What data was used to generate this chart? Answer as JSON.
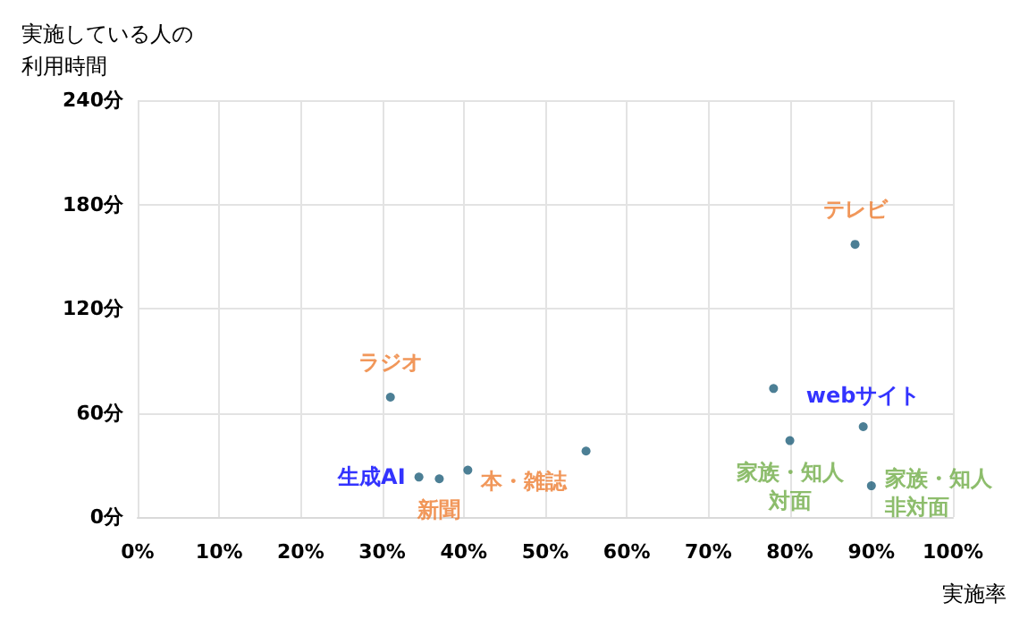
{
  "chart_data": {
    "type": "scatter",
    "xlabel": "実施率",
    "ylabel": "実施している人の利用時間",
    "xlim": [
      0,
      100
    ],
    "ylim": [
      0,
      240
    ],
    "xticks": [
      {
        "value": 0,
        "label": "0%"
      },
      {
        "value": 10,
        "label": "10%"
      },
      {
        "value": 20,
        "label": "20%"
      },
      {
        "value": 30,
        "label": "30%"
      },
      {
        "value": 40,
        "label": "40%"
      },
      {
        "value": 50,
        "label": "50%"
      },
      {
        "value": 60,
        "label": "60%"
      },
      {
        "value": 70,
        "label": "70%"
      },
      {
        "value": 80,
        "label": "80%"
      },
      {
        "value": 90,
        "label": "90%"
      },
      {
        "value": 100,
        "label": "100%"
      }
    ],
    "yticks": [
      {
        "value": 0,
        "label": "0分"
      },
      {
        "value": 60,
        "label": "60分"
      },
      {
        "value": 120,
        "label": "120分"
      },
      {
        "value": 180,
        "label": "180分"
      },
      {
        "value": 240,
        "label": "240分"
      }
    ],
    "grid": true,
    "marker": "circle",
    "series": [
      {
        "color": "#1f5f7a",
        "x": [
          88,
          31,
          37,
          40.5
        ],
        "values": [
          157,
          69,
          22,
          27
        ],
        "value_labels": [
          "テレビ",
          "ラジオ",
          "新聞",
          "本・雑誌"
        ]
      },
      {
        "color": "#1f5f7a",
        "x": [
          34.5,
          89,
          78,
          55
        ],
        "values": [
          23,
          52,
          74,
          38
        ],
        "value_labels": [
          "生成AI",
          "webサイト",
          null,
          null
        ]
      },
      {
        "color": "#1f5f7a",
        "x": [
          80,
          90
        ],
        "values": [
          44,
          18
        ],
        "value_labels": [
          "家族・知人対面",
          "家族・知人非対面"
        ]
      }
    ]
  }
}
